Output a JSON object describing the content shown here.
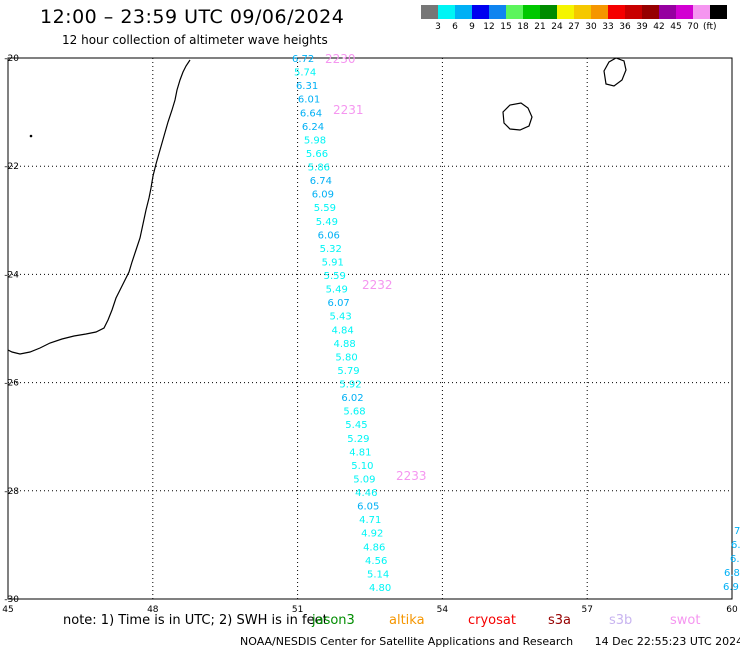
{
  "header": {
    "title": "12:00 – 23:59 UTC 09/06/2024",
    "subtitle": "12 hour collection of altimeter wave heights"
  },
  "colorbar": {
    "colors": [
      "#777777",
      "#00f5f5",
      "#00b0f5",
      "#0000f0",
      "#0f84f0",
      "#5cf55c",
      "#00c800",
      "#008c00",
      "#f5f500",
      "#f5c800",
      "#f59600",
      "#f50000",
      "#c80000",
      "#960000",
      "#9600a0",
      "#d200d2",
      "#f596f0",
      "#000000"
    ],
    "labels": [
      "3",
      "6",
      "9",
      "12",
      "15",
      "18",
      "21",
      "24",
      "27",
      "30",
      "33",
      "36",
      "39",
      "42",
      "45",
      "70"
    ],
    "unit": "(ft)"
  },
  "map": {
    "lon_range": [
      45,
      60
    ],
    "lat_range": [
      -30,
      -20
    ],
    "x_ticks": [
      "45",
      "48",
      "51",
      "54",
      "57",
      "60"
    ],
    "y_ticks": [
      "-20",
      "-22",
      "-24",
      "-26",
      "-28",
      "-30"
    ],
    "grid": true,
    "track": {
      "values": [
        "6.72",
        "5.74",
        "6.31",
        "6.01",
        "6.64",
        "6.24",
        "5.98",
        "5.66",
        "5.86",
        "6.74",
        "6.09",
        "5.59",
        "5.49",
        "6.06",
        "5.32",
        "5.91",
        "5.59",
        "5.49",
        "6.07",
        "5.43",
        "4.84",
        "4.88",
        "5.80",
        "5.79",
        "5.92",
        "6.02",
        "5.68",
        "5.45",
        "5.29",
        "4.81",
        "5.10",
        "5.09",
        "4.46",
        "6.05",
        "4.71",
        "4.92",
        "4.86",
        "4.56",
        "5.14",
        "4.80"
      ],
      "colors": [
        "#00b0f5",
        "#00f5f5",
        "#00b0f5",
        "#00b0f5",
        "#00b0f5",
        "#00b0f5",
        "#00f5f5",
        "#00f5f5",
        "#00f5f5",
        "#00b0f5",
        "#00b0f5",
        "#00f5f5",
        "#00f5f5",
        "#00b0f5",
        "#00f5f5",
        "#00f5f5",
        "#00f5f5",
        "#00f5f5",
        "#00b0f5",
        "#00f5f5",
        "#00f5f5",
        "#00f5f5",
        "#00f5f5",
        "#00f5f5",
        "#00f5f5",
        "#00b0f5",
        "#00f5f5",
        "#00f5f5",
        "#00f5f5",
        "#00f5f5",
        "#00f5f5",
        "#00f5f5",
        "#00f5f5",
        "#00b0f5",
        "#00f5f5",
        "#00f5f5",
        "#00f5f5",
        "#00f5f5",
        "#00f5f5",
        "#00f5f5"
      ],
      "time_tags": [
        "2230",
        "2231",
        "2232",
        "2233"
      ],
      "time_color": "#f596f0"
    },
    "edge_track": {
      "values": [
        "",
        "7",
        "6.",
        "6.",
        "6.8",
        "6.9"
      ],
      "color": "#00b0f5"
    }
  },
  "note": {
    "text": "note:  1) Time is in UTC;  2) SWH is in feet"
  },
  "satellites": [
    {
      "name": "jason3",
      "color": "#008c00"
    },
    {
      "name": "altika",
      "color": "#f59600"
    },
    {
      "name": "cryosat",
      "color": "#f50000"
    },
    {
      "name": "s3a",
      "color": "#960000"
    },
    {
      "name": "s3b",
      "color": "#c8b4f0"
    },
    {
      "name": "swot",
      "color": "#f596f0"
    }
  ],
  "footer": {
    "org": "NOAA/NESDIS Center for Satellite Applications and Research",
    "timestamp": "14 Dec 22:55:23 UTC 2024"
  }
}
